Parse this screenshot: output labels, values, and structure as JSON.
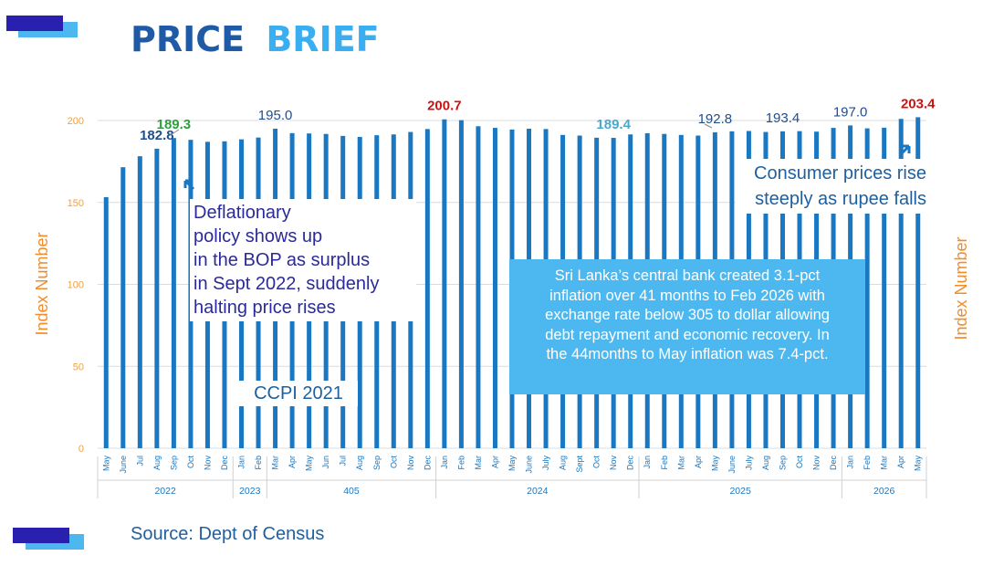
{
  "header": {
    "title_part1": "PRICE",
    "title_part2": "BRIEF"
  },
  "source": "Source: Dept of Census",
  "notes": {
    "deflation": [
      "Deflationary",
      "policy shows up",
      "in the BOP as surplus",
      "in Sept 2022, suddenly",
      "halting price rises"
    ],
    "rupee": [
      "Consumer prices rise",
      "steeply as rupee falls"
    ],
    "callout": [
      "Sri Lanka’s central bank created 3.1-pct",
      "inflation over 41 months to Feb 2026 with",
      "exchange rate below 305 to dollar allowing",
      "debt repayment and economic recovery. In",
      "the 44months to May inflation was 7.4-pct."
    ],
    "series_label": "CCPI 2021"
  },
  "colors": {
    "bar": "#1a78c2",
    "title_dark": "#1f5aa6",
    "title_light": "#39aef0",
    "axis_title": "#f08c2a",
    "tick": "#f0a040",
    "green": "#2e9e3e",
    "red": "#d01010",
    "teal": "#4aa8c8",
    "dark_label": "#1f4f8f",
    "logo_dark": "#2a20b0",
    "logo_light": "#4db8f0"
  },
  "chart_data": {
    "type": "bar",
    "y_axis_label_left": "Index Number",
    "y_axis_label_right": "Index Number",
    "ylim": [
      0,
      200
    ],
    "yticks": [
      0,
      50,
      100,
      150,
      200
    ],
    "categories": [
      "May",
      "June",
      "Jul",
      "Aug",
      "Sep",
      "Oct",
      "Nov",
      "Dec",
      "Jan",
      "Feb",
      "Mar",
      "Apr",
      "May",
      "Jun",
      "Jul",
      "Aug",
      "Sep",
      "Oct",
      "Nov",
      "Dec",
      "Jan",
      "Feb",
      "Mar",
      "Apr",
      "May",
      "June",
      "July",
      "Aug",
      "Sept",
      "Oct",
      "Nov",
      "Dec",
      "Jan",
      "Feb",
      "Mar",
      "Apr",
      "May",
      "June",
      "July",
      "Aug",
      "Sep",
      "Oct",
      "Nov",
      "Dec",
      "Jan",
      "Feb",
      "Mar",
      "Apr",
      "May"
    ],
    "values": [
      153.2,
      171.5,
      178.2,
      182.8,
      189.3,
      188.2,
      187.0,
      187.3,
      188.5,
      189.6,
      195.0,
      192.3,
      192.1,
      191.8,
      190.6,
      190.0,
      191.0,
      191.5,
      193.0,
      194.8,
      200.7,
      200.2,
      196.5,
      195.5,
      194.5,
      195.0,
      194.8,
      191.2,
      190.8,
      189.5,
      189.4,
      191.5,
      192.2,
      191.8,
      191.2,
      190.8,
      192.8,
      193.4,
      193.6,
      193.0,
      193.4,
      193.5,
      193.2,
      195.5,
      197.0,
      195.2,
      195.6,
      201.0,
      203.4
    ],
    "year_groups": [
      {
        "label": "2022",
        "start": 0,
        "end": 7
      },
      {
        "label": "2023",
        "start": 8,
        "end": 9
      },
      {
        "label": "405",
        "start": 10,
        "end": 19
      },
      {
        "label": "2024",
        "start": 20,
        "end": 31
      },
      {
        "label": "2025",
        "start": 32,
        "end": 43
      },
      {
        "label": "2026",
        "start": 44,
        "end": 48
      }
    ],
    "data_labels": [
      {
        "index": 3,
        "text": "182.8",
        "color": "#1f4f8f",
        "bold": true
      },
      {
        "index": 4,
        "text": "189.3",
        "color": "#2e9e3e",
        "bold": true
      },
      {
        "index": 10,
        "text": "195.0",
        "color": "#1f4f8f",
        "bold": false
      },
      {
        "index": 20,
        "text": "200.7",
        "color": "#d01010",
        "bold": true
      },
      {
        "index": 30,
        "text": "189.4",
        "color": "#4aa8c8",
        "bold": true
      },
      {
        "index": 36,
        "text": "192.8",
        "color": "#1f4f8f",
        "bold": false
      },
      {
        "index": 40,
        "text": "193.4",
        "color": "#1f4f8f",
        "bold": false
      },
      {
        "index": 44,
        "text": "197.0",
        "color": "#1f4f8f",
        "bold": false
      },
      {
        "index": 48,
        "text": "203.4",
        "color": "#d01010",
        "bold": true
      }
    ]
  }
}
